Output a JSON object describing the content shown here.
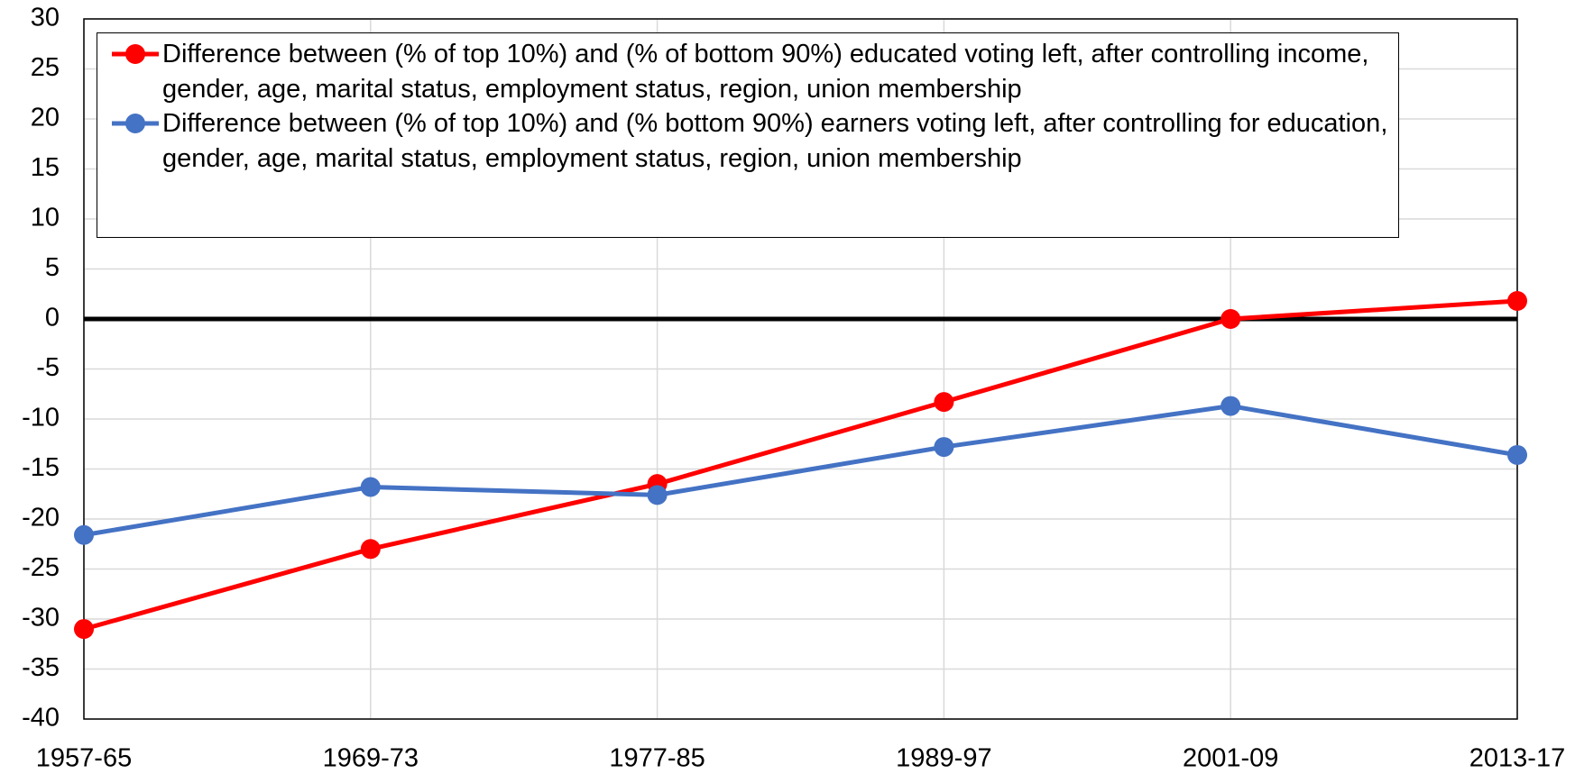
{
  "chart_data": {
    "type": "line",
    "categories": [
      "1957-65",
      "1969-73",
      "1977-85",
      "1989-97",
      "2001-09",
      "2013-17"
    ],
    "series": [
      {
        "name": "Difference between (% of top 10%) and (% of bottom 90%) educated voting left, after controlling income, gender, age, marital status, employment status, region, union membership",
        "color": "#ff0000",
        "values": [
          -31,
          -23,
          -16.5,
          -8.3,
          0,
          1.8
        ]
      },
      {
        "name": "Difference between (% of top 10%) and (% bottom 90%) earners voting left, after controlling for education, gender, age, marital status, employment status, region, union membership",
        "color": "#4472c4",
        "values": [
          -21.6,
          -16.8,
          -17.6,
          -12.8,
          -8.7,
          -13.6
        ]
      }
    ],
    "ylim": [
      -40,
      30
    ],
    "yticks": [
      -40,
      -35,
      -30,
      -25,
      -20,
      -15,
      -10,
      -5,
      0,
      5,
      10,
      15,
      20,
      25,
      30
    ],
    "grid": true,
    "legend": "top-left"
  }
}
